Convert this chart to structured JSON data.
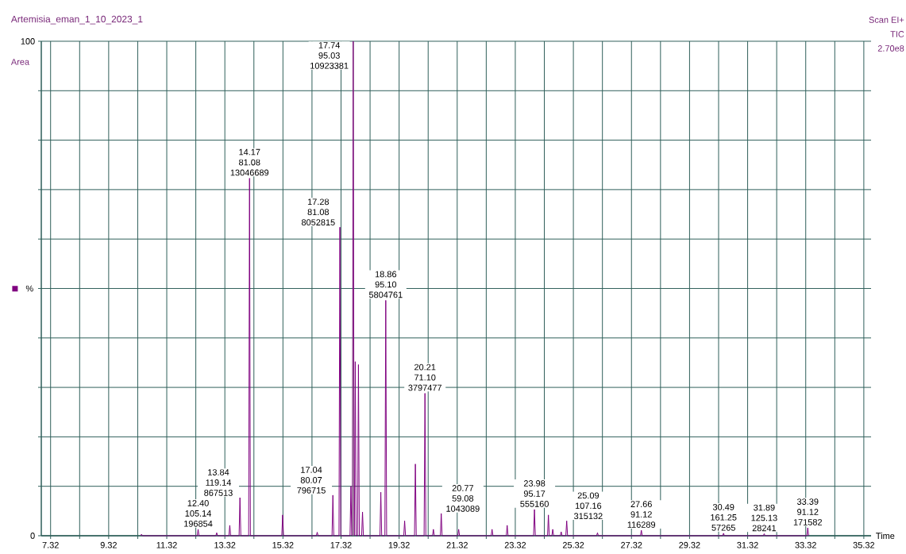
{
  "chart_data": {
    "type": "line",
    "title": "Artemisia_eman_1_10_2023_1",
    "xlabel": "Time",
    "ylabel": "%",
    "annotations": [
      "Area",
      "Scan EI+",
      "TIC",
      "2.70e8",
      {
        "text": "12.40 105.14 196854",
        "x": 12.4,
        "y": 1.3
      },
      {
        "text": "13.84 119.14 867513",
        "x": 13.84,
        "y": 7.7
      },
      {
        "text": "14.17 81.08 13046689",
        "x": 14.17,
        "y": 72.3
      },
      {
        "text": "17.04 80.07 796715",
        "x": 17.04,
        "y": 8.2
      },
      {
        "text": "17.28 81.08 8052815",
        "x": 17.28,
        "y": 62.4
      },
      {
        "text": "17.74 95.03 10923381",
        "x": 17.74,
        "y": 100
      },
      {
        "text": "18.86 95.10 5804761",
        "x": 18.86,
        "y": 47.6
      },
      {
        "text": "20.21 71.10 3797477",
        "x": 20.21,
        "y": 28.8
      },
      {
        "text": "20.77 59.08 1043089",
        "x": 20.77,
        "y": 4.5
      },
      {
        "text": "23.98 95.17 555160",
        "x": 23.98,
        "y": 5.3
      },
      {
        "text": "25.09 107.16 315132",
        "x": 25.09,
        "y": 3.0
      },
      {
        "text": "27.66 91.12 116289",
        "x": 27.66,
        "y": 1.1
      },
      {
        "text": "30.49 161.25 57265",
        "x": 30.49,
        "y": 0.5
      },
      {
        "text": "31.89 125.13 28241",
        "x": 31.89,
        "y": 0.4
      },
      {
        "text": "33.39 91.12 171582",
        "x": 33.39,
        "y": 1.6
      }
    ],
    "series": [
      {
        "color": "#800080",
        "x": [
          10.42,
          10.45,
          10.48,
          12.37,
          12.4,
          12.43,
          13.01,
          13.04,
          13.07,
          13.46,
          13.49,
          13.52,
          13.81,
          13.84,
          13.87,
          14.14,
          14.17,
          14.2,
          15.28,
          15.31,
          15.34,
          16.47,
          16.5,
          16.53,
          17.01,
          17.04,
          17.07,
          17.25,
          17.28,
          17.31,
          17.63,
          17.66,
          17.69,
          17.71,
          17.74,
          17.77,
          17.78,
          17.81,
          17.84,
          17.89,
          17.92,
          17.95,
          18.03,
          18.06,
          18.09,
          18.66,
          18.69,
          18.72,
          18.83,
          18.86,
          18.89,
          19.48,
          19.51,
          19.54,
          19.85,
          19.88,
          19.91,
          20.18,
          20.21,
          20.24,
          20.47,
          20.5,
          20.53,
          20.74,
          20.77,
          20.8,
          21.34,
          21.37,
          21.4,
          22.49,
          22.52,
          22.55,
          23.01,
          23.04,
          23.07,
          23.95,
          23.98,
          24.01,
          24.43,
          24.46,
          24.49,
          24.58,
          24.61,
          24.64,
          24.87,
          24.9,
          24.93,
          25.06,
          25.09,
          25.12,
          26.12,
          26.15,
          26.18,
          27.63,
          27.66,
          27.69,
          30.46,
          30.49,
          30.52,
          31.86,
          31.89,
          31.92,
          33.36,
          33.39,
          33.42
        ],
        "values": [
          0,
          0.3,
          0,
          0,
          1.3,
          0,
          0,
          0.6,
          0,
          0,
          2.1,
          0,
          0,
          7.7,
          0,
          0,
          72.3,
          0,
          0,
          4.2,
          0,
          0,
          0.7,
          0,
          0,
          8.2,
          0,
          0,
          62.4,
          0,
          0,
          10.0,
          0,
          0,
          100,
          0,
          0,
          35.2,
          0,
          0,
          34.6,
          0,
          0,
          4.8,
          0,
          0,
          8.8,
          0,
          0,
          47.6,
          0,
          0,
          3.0,
          0,
          0,
          14.5,
          0,
          0,
          28.8,
          0,
          0,
          1.3,
          0,
          0,
          4.5,
          0,
          0,
          1.3,
          0,
          0,
          1.3,
          0,
          0,
          2.1,
          0,
          0,
          5.3,
          0,
          0,
          4.2,
          0,
          0,
          1.3,
          0,
          0,
          0.8,
          0,
          0,
          3.0,
          0,
          0,
          0.6,
          0,
          0,
          1.1,
          0,
          0,
          0.5,
          0,
          0,
          0.4,
          0,
          0,
          1.6,
          0
        ]
      }
    ],
    "xlim": [
      7.0,
      35.57
    ],
    "ylim": [
      0,
      100
    ],
    "xticks": [
      7.32,
      {
        "value": 8.32,
        "label": null
      },
      9.32,
      {
        "value": 10.32,
        "label": null
      },
      11.32,
      {
        "value": 12.32,
        "label": null
      },
      13.32,
      {
        "value": 14.32,
        "label": null
      },
      15.32,
      {
        "value": 16.32,
        "label": null
      },
      17.32,
      {
        "value": 18.32,
        "label": null
      },
      19.32,
      {
        "value": 20.32,
        "label": null
      },
      21.32,
      {
        "value": 22.32,
        "label": null
      },
      23.32,
      {
        "value": 24.32,
        "label": null
      },
      25.32,
      {
        "value": 26.32,
        "label": null
      },
      27.32,
      {
        "value": 28.32,
        "label": null
      },
      29.32,
      {
        "value": 30.32,
        "label": null
      },
      31.32,
      {
        "value": 32.32,
        "label": null
      },
      33.32,
      {
        "value": 34.32,
        "label": null
      },
      35.32
    ],
    "yticks": [
      0,
      {
        "value": 10,
        "label": null
      },
      {
        "value": 20,
        "label": null
      },
      {
        "value": 30,
        "label": null
      },
      {
        "value": 40,
        "label": null
      },
      {
        "value": 50,
        "label": null
      },
      {
        "value": 60,
        "label": null
      },
      {
        "value": 70,
        "label": null
      },
      {
        "value": 80,
        "label": null
      },
      {
        "value": 90,
        "label": null
      },
      100
    ],
    "ref_lines": [
      {
        "axis": "x",
        "value": 17.74,
        "color": "#80e080"
      }
    ],
    "grid": true,
    "marker": "none",
    "line_style": "solid"
  }
}
